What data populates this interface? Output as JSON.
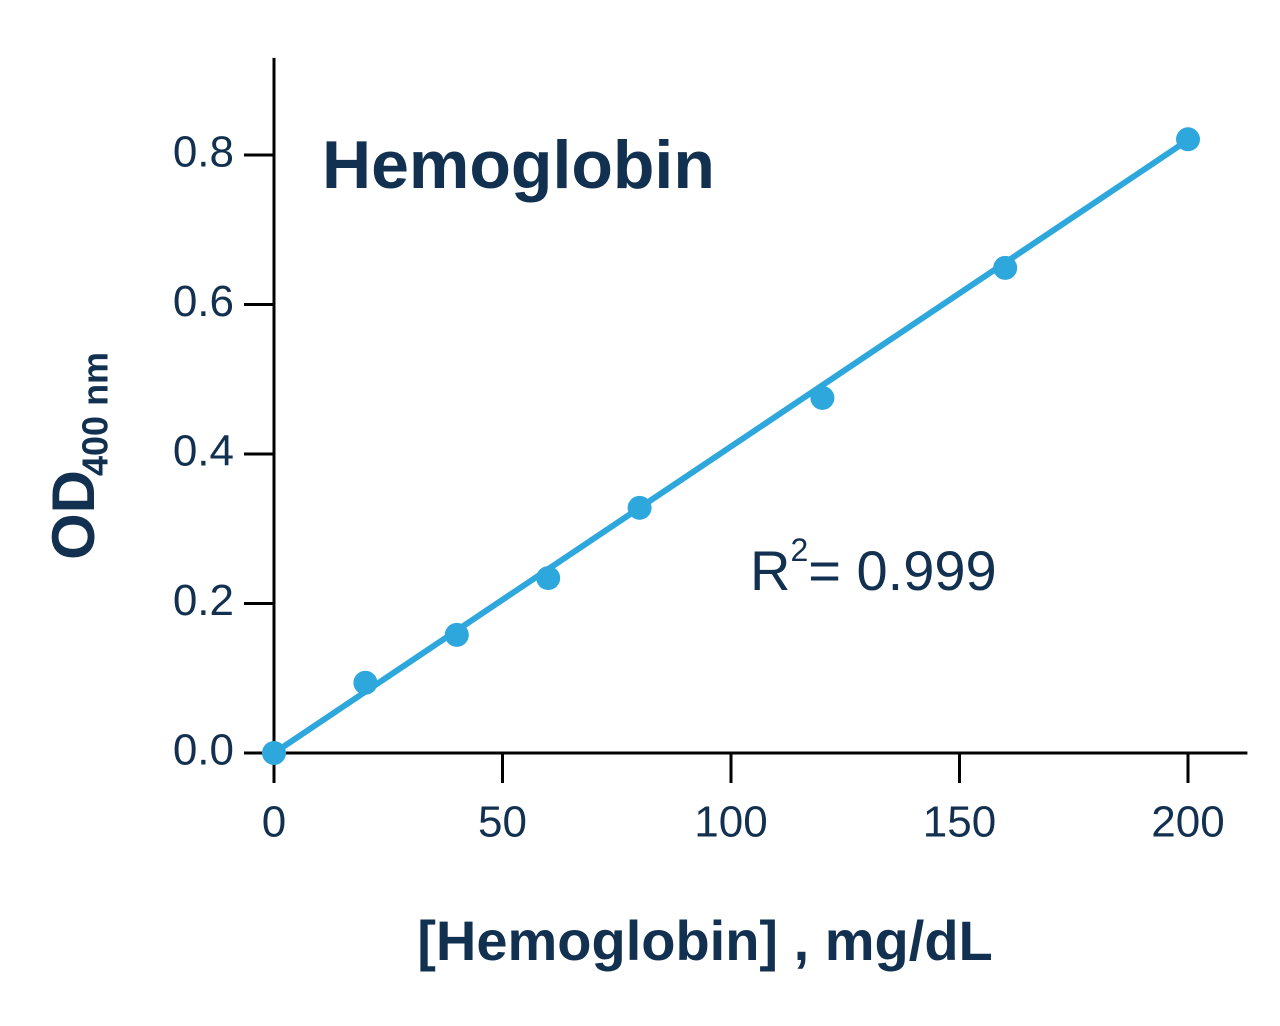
{
  "chart_data": {
    "type": "scatter",
    "title": "Hemoglobin",
    "xlabel": "[Hemoglobin] , mg/dL",
    "ylabel": {
      "main": "OD",
      "sub": "400 nm"
    },
    "annotation": {
      "base": "R",
      "sup": "2",
      "rest": "= 0.999"
    },
    "xlim": [
      0,
      213
    ],
    "ylim": [
      0,
      0.93
    ],
    "xticks": [
      0,
      50,
      100,
      150,
      200
    ],
    "yticks": [
      {
        "value": 0,
        "label": "0.0"
      },
      0.2,
      0.4,
      0.6,
      0.8
    ],
    "series": [
      {
        "name": "Standard",
        "color": "#2ea8dc",
        "x": [
          0,
          20,
          40,
          60,
          80,
          120,
          160,
          200
        ],
        "values": [
          0,
          0.094,
          0.158,
          0.234,
          0.328,
          0.475,
          0.649,
          0.821
        ]
      }
    ],
    "fit": {
      "color": "#2ea8dc",
      "x": [
        0,
        200
      ],
      "values": [
        0,
        0.82
      ]
    }
  }
}
